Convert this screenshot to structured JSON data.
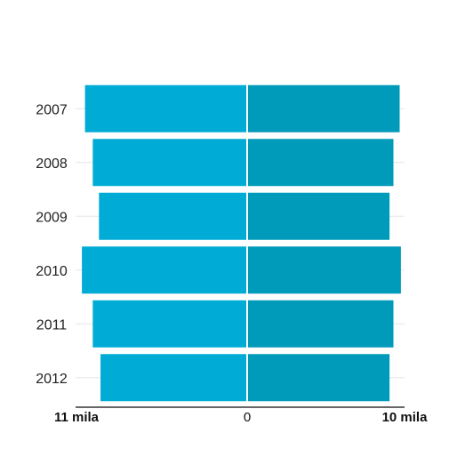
{
  "chart_data": {
    "type": "bar",
    "orientation": "horizontal-diverging",
    "categories": [
      "2007",
      "2008",
      "2009",
      "2010",
      "2011",
      "2012"
    ],
    "series": [
      {
        "values": [
          10450,
          9950,
          9550,
          10650,
          9950,
          9450
        ],
        "color": "#00acd6"
      },
      {
        "values": [
          9800,
          9400,
          9150,
          9880,
          9400,
          9150
        ],
        "color": "#009aba"
      }
    ],
    "x_axis": {
      "left_label": "11 mila",
      "center_label": "0",
      "right_label": "10 mila",
      "left_max": 11000,
      "right_max": 10000
    },
    "grid": true,
    "title": "",
    "xlabel": "",
    "ylabel": ""
  }
}
